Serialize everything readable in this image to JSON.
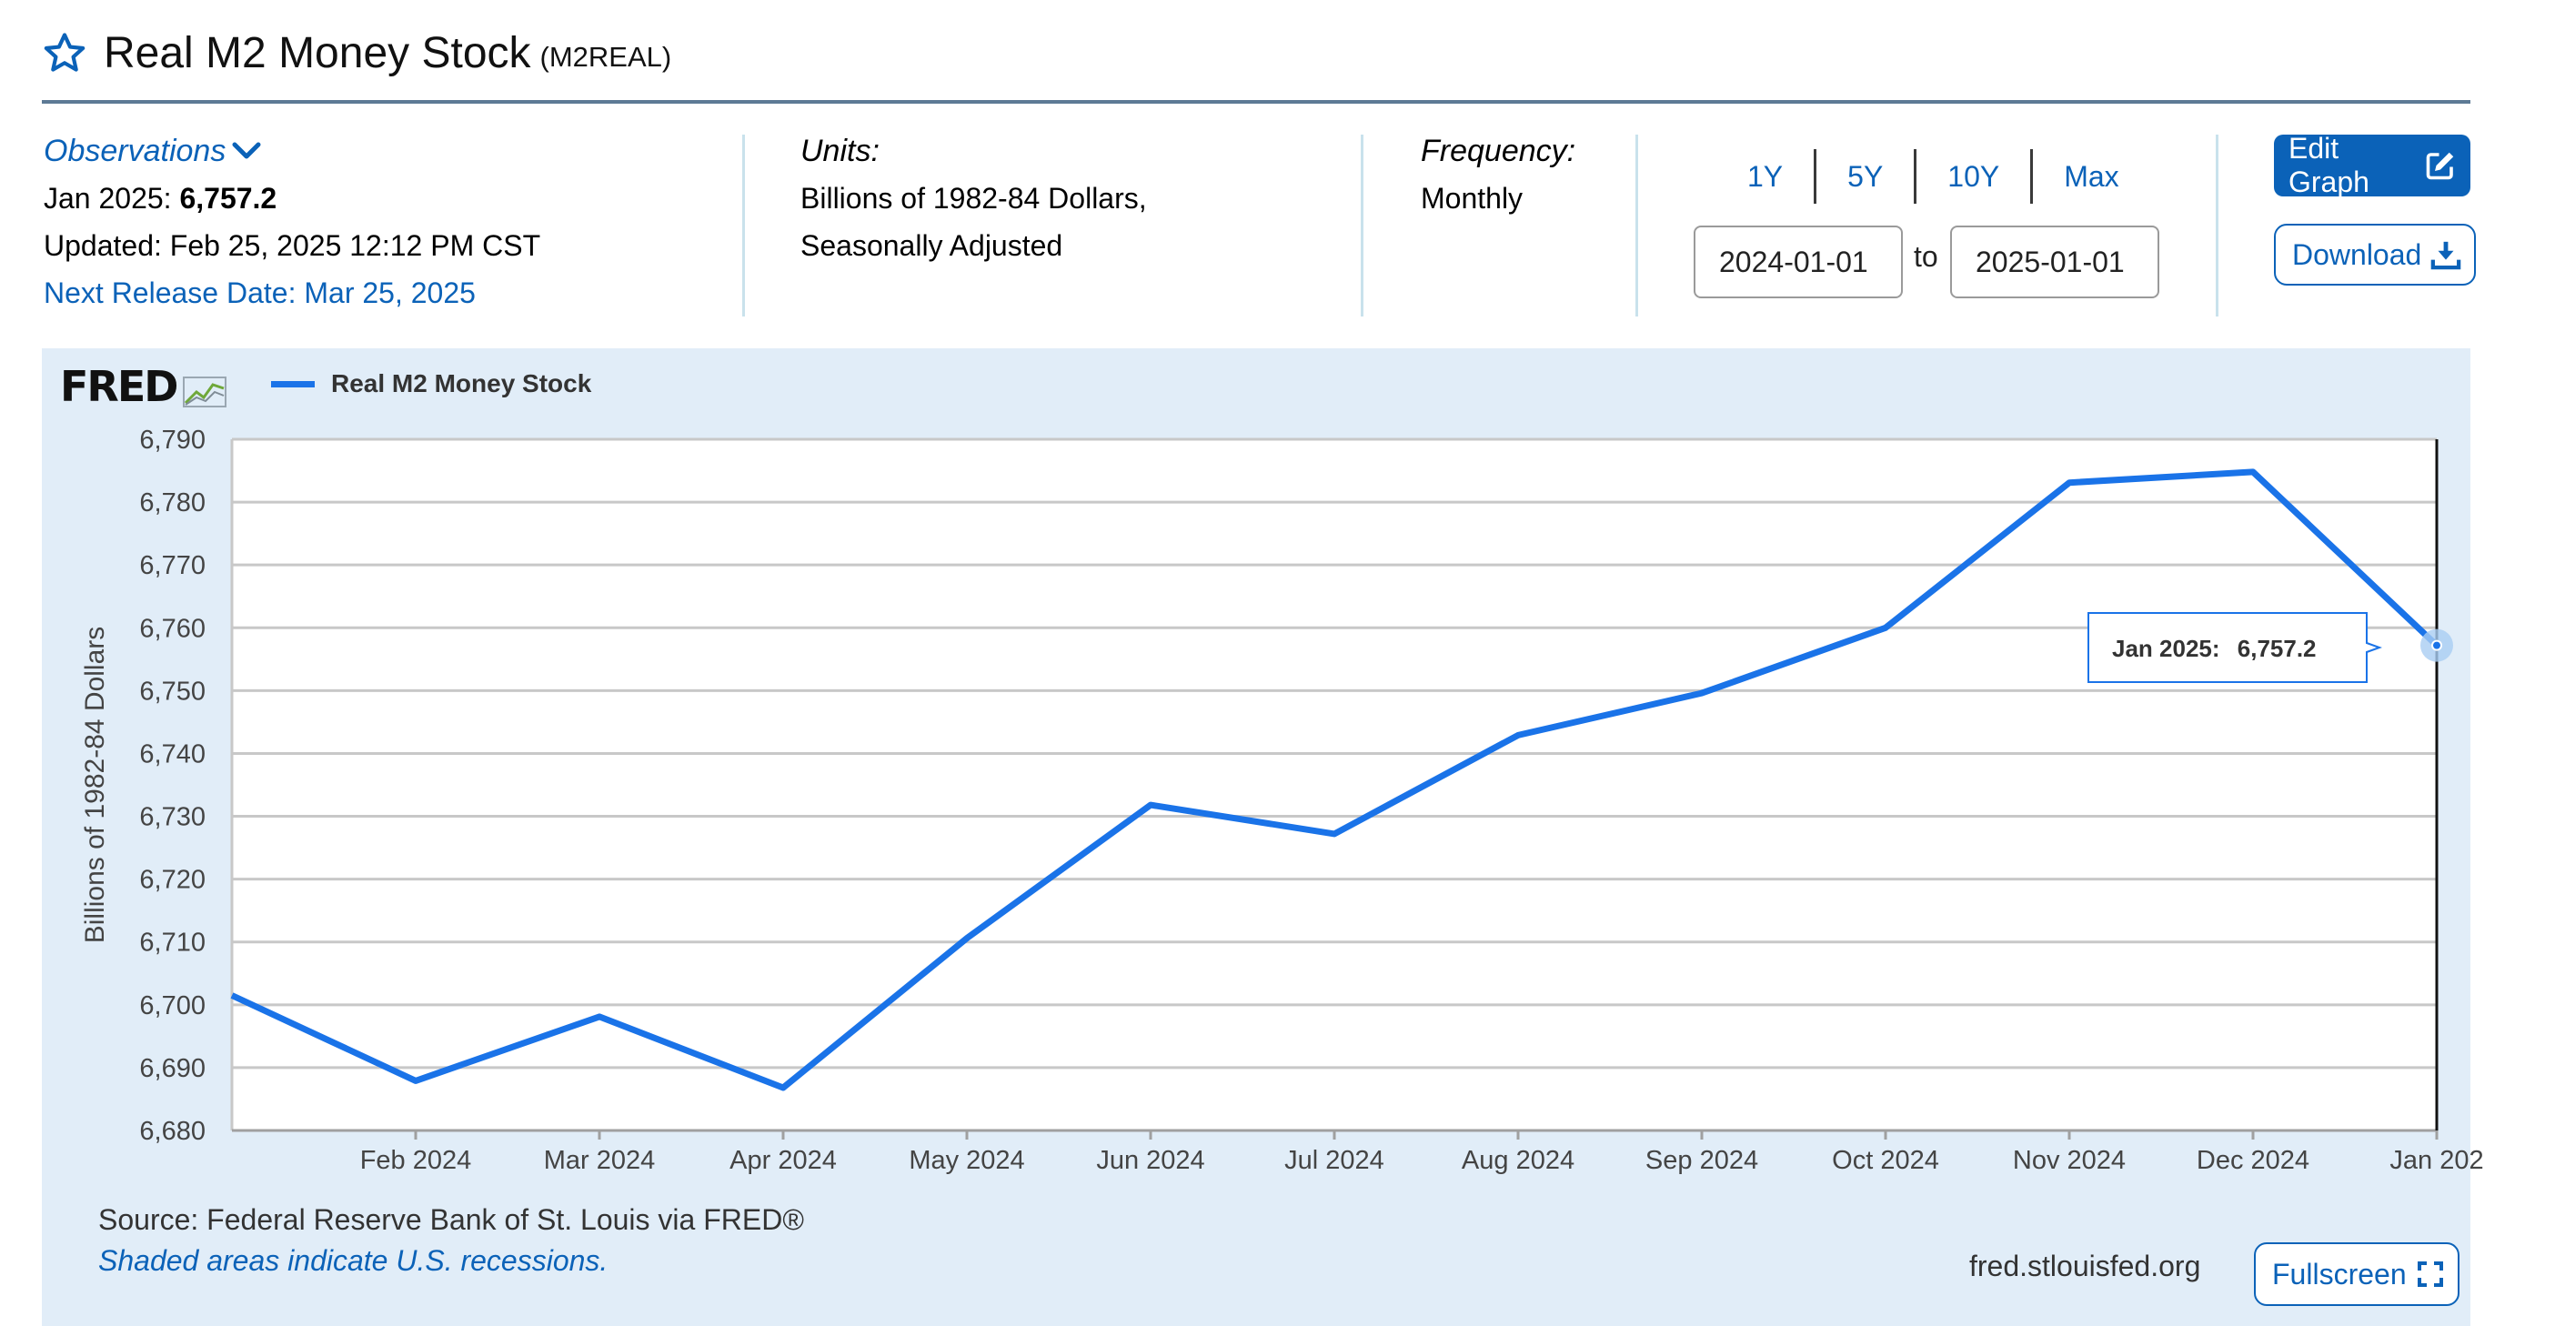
{
  "header": {
    "title": "Real M2 Money Stock",
    "series_id": "(M2REAL)"
  },
  "observations": {
    "heading": "Observations",
    "latest_label": "Jan 2025:",
    "latest_value": "6,757.2",
    "updated": "Updated: Feb 25, 2025 12:12 PM CST",
    "next_release": "Next Release Date: Mar 25, 2025"
  },
  "units": {
    "heading": "Units:",
    "line1": "Billions of 1982-84 Dollars,",
    "line2": "Seasonally Adjusted"
  },
  "frequency": {
    "heading": "Frequency:",
    "value": "Monthly"
  },
  "range": {
    "buttons": [
      "1Y",
      "5Y",
      "10Y",
      "Max"
    ],
    "start": "2024-01-01",
    "to": "to",
    "end": "2025-01-01"
  },
  "actions": {
    "edit_graph": "Edit Graph",
    "download": "Download",
    "fullscreen": "Fullscreen"
  },
  "footer": {
    "source": "Source: Federal Reserve Bank of St. Louis via FRED®",
    "shaded_note": "Shaded areas indicate U.S. recessions.",
    "site": "fred.stlouisfed.org"
  },
  "brand": {
    "logo_text": "FRED"
  },
  "colors": {
    "series": "#1a73e8",
    "link": "#0b62b8",
    "panel": "#e1edf8"
  },
  "chart_data": {
    "type": "line",
    "title": "",
    "xlabel": "",
    "ylabel": "Billions of 1982-84 Dollars",
    "ylim": [
      6680,
      6790
    ],
    "yticks": [
      6680,
      6690,
      6700,
      6710,
      6720,
      6730,
      6740,
      6750,
      6760,
      6770,
      6780,
      6790
    ],
    "ytick_labels": [
      "6,680",
      "6,690",
      "6,700",
      "6,710",
      "6,720",
      "6,730",
      "6,740",
      "6,750",
      "6,760",
      "6,770",
      "6,780",
      "6,790"
    ],
    "x": [
      "2024-01",
      "2024-02",
      "2024-03",
      "2024-04",
      "2024-05",
      "2024-06",
      "2024-07",
      "2024-08",
      "2024-09",
      "2024-10",
      "2024-11",
      "2024-12",
      "2025-01"
    ],
    "x_tick_labels": [
      "Feb 2024",
      "Mar 2024",
      "Apr 2024",
      "May 2024",
      "Jun 2024",
      "Jul 2024",
      "Aug 2024",
      "Sep 2024",
      "Oct 2024",
      "Nov 2024",
      "Dec 2024",
      "Jan 202"
    ],
    "series": [
      {
        "name": "Real M2 Money Stock",
        "values": [
          6701.5,
          6687.9,
          6698.1,
          6686.8,
          6710.6,
          6731.8,
          6727.2,
          6742.9,
          6749.6,
          6760.0,
          6783.1,
          6784.8,
          6757.2
        ]
      }
    ],
    "tooltip": {
      "label": "Jan 2025:",
      "value": "6,757.2"
    },
    "grid": true,
    "legend_position": "top-left"
  }
}
